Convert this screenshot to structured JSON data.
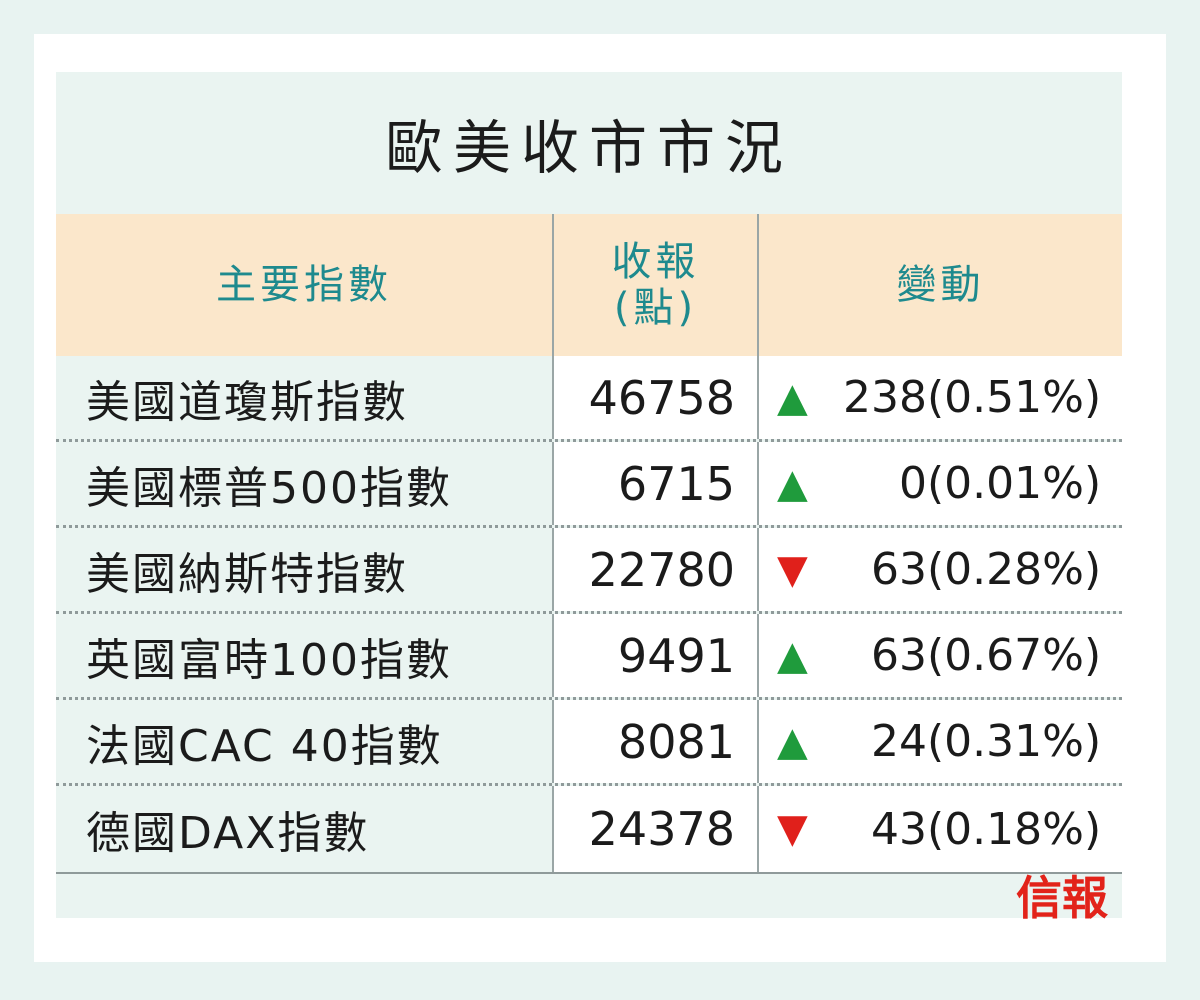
{
  "title": "歐美收市市況",
  "header": {
    "col_index": "主要指數",
    "col_close_line1": "收報",
    "col_close_line2": "(點)",
    "col_change": "變動"
  },
  "rows": [
    {
      "name": "美國道瓊斯指數",
      "close": "46758",
      "direction": "up",
      "arrow": "▲",
      "points": "238",
      "percent": "(0.51%)"
    },
    {
      "name": "美國標普500指數",
      "close": "6715",
      "direction": "up",
      "arrow": "▲",
      "points": "0",
      "percent": "(0.01%)"
    },
    {
      "name": "美國納斯特指數",
      "close": "22780",
      "direction": "down",
      "arrow": "▼",
      "points": "63",
      "percent": "(0.28%)"
    },
    {
      "name": "英國富時100指數",
      "close": "9491",
      "direction": "up",
      "arrow": "▲",
      "points": "63",
      "percent": "(0.67%)"
    },
    {
      "name": "法國CAC 40指數",
      "close": "8081",
      "direction": "up",
      "arrow": "▲",
      "points": "24",
      "percent": "(0.31%)"
    },
    {
      "name": "德國DAX指數",
      "close": "24378",
      "direction": "down",
      "arrow": "▼",
      "points": "43",
      "percent": "(0.18%)"
    }
  ],
  "logo": "信報",
  "colors": {
    "up": "#1f9b3c",
    "down": "#e0201b",
    "header_text": "#1e8a8e",
    "header_bg": "#fbe7cb",
    "logo": "#e2231a"
  }
}
